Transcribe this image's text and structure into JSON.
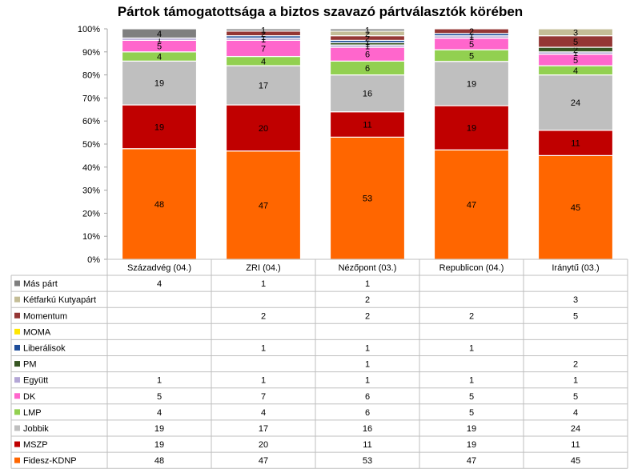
{
  "chart_data": {
    "type": "bar",
    "stacked": true,
    "percent": true,
    "title": "Pártok támogatottsága a biztos szavazó pártválasztók körében",
    "categories": [
      "Századvég (04.)",
      "ZRI (04.)",
      "Nézőpont (03.)",
      "Republicon (04.)",
      "Iránytű (03.)"
    ],
    "ylim": [
      0,
      100
    ],
    "yticks": [
      "0%",
      "10%",
      "20%",
      "30%",
      "40%",
      "50%",
      "60%",
      "70%",
      "80%",
      "90%",
      "100%"
    ],
    "grid": false,
    "legend": "data-table",
    "series": [
      {
        "name": "Fidesz-KDNP",
        "color": "#ff6600",
        "values": [
          48,
          47,
          53,
          47,
          45
        ]
      },
      {
        "name": "MSZP",
        "color": "#c00000",
        "values": [
          19,
          20,
          11,
          19,
          11
        ]
      },
      {
        "name": "Jobbik",
        "color": "#bfbfbf",
        "values": [
          19,
          17,
          16,
          19,
          24
        ]
      },
      {
        "name": "LMP",
        "color": "#92d050",
        "values": [
          4,
          4,
          6,
          5,
          4
        ]
      },
      {
        "name": "DK",
        "color": "#ff66cc",
        "values": [
          5,
          7,
          6,
          5,
          5
        ]
      },
      {
        "name": "Együtt",
        "color": "#b4a7d6",
        "values": [
          1,
          1,
          1,
          1,
          1
        ]
      },
      {
        "name": "PM",
        "color": "#375623",
        "values": [
          null,
          null,
          1,
          null,
          2
        ]
      },
      {
        "name": "Liberálisok",
        "color": "#1f4e9a",
        "values": [
          null,
          1,
          1,
          1,
          null
        ]
      },
      {
        "name": "MOMA",
        "color": "#ffe600",
        "values": [
          null,
          null,
          null,
          null,
          null
        ]
      },
      {
        "name": "Momentum",
        "color": "#943634",
        "values": [
          null,
          2,
          2,
          2,
          5
        ]
      },
      {
        "name": "Kétfarkú Kutyapárt",
        "color": "#c4bd97",
        "values": [
          null,
          null,
          2,
          null,
          3
        ]
      },
      {
        "name": "Más párt",
        "color": "#7f7f7f",
        "values": [
          4,
          1,
          1,
          null,
          null
        ]
      }
    ]
  }
}
